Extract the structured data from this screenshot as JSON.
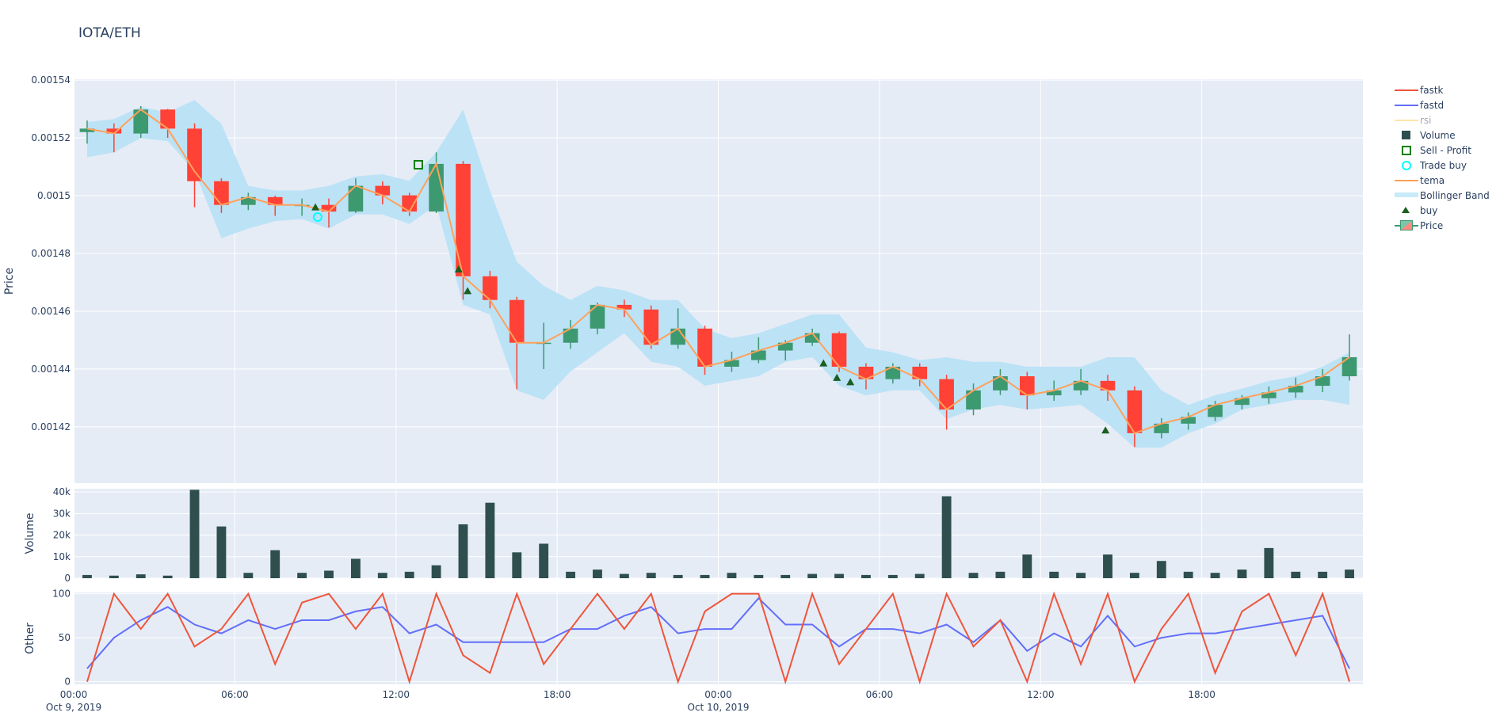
{
  "chart_data": {
    "type": "candlestick",
    "title": "IOTA/ETH",
    "x_range": [
      "2019-10-09 00:00",
      "2019-10-11 00:00"
    ],
    "x_ticks": [
      {
        "t": "2019-10-09 00:00",
        "label": "00:00",
        "sub": "Oct 9, 2019"
      },
      {
        "t": "2019-10-09 06:00",
        "label": "06:00",
        "sub": ""
      },
      {
        "t": "2019-10-09 12:00",
        "label": "12:00",
        "sub": ""
      },
      {
        "t": "2019-10-09 18:00",
        "label": "18:00",
        "sub": ""
      },
      {
        "t": "2019-10-10 00:00",
        "label": "00:00",
        "sub": "Oct 10, 2019"
      },
      {
        "t": "2019-10-10 06:00",
        "label": "06:00",
        "sub": ""
      },
      {
        "t": "2019-10-10 12:00",
        "label": "12:00",
        "sub": ""
      },
      {
        "t": "2019-10-10 18:00",
        "label": "18:00",
        "sub": ""
      }
    ],
    "panels": {
      "price": {
        "ylabel": "Price",
        "ylim": [
          0.0014005,
          0.0015403
        ],
        "ticks": [
          {
            "v": 0.00142,
            "label": "0.00142"
          },
          {
            "v": 0.00144,
            "label": "0.00144"
          },
          {
            "v": 0.00146,
            "label": "0.00146"
          },
          {
            "v": 0.00148,
            "label": "0.00148"
          },
          {
            "v": 0.0015,
            "label": "0.0015"
          },
          {
            "v": 0.00152,
            "label": "0.00152"
          },
          {
            "v": 0.00154,
            "label": "0.00154"
          }
        ]
      },
      "volume": {
        "ylabel": "Volume",
        "ylim": [
          0,
          41500
        ],
        "ticks": [
          {
            "v": 0,
            "label": "0"
          },
          {
            "v": 10000,
            "label": "10k"
          },
          {
            "v": 20000,
            "label": "20k"
          },
          {
            "v": 30000,
            "label": "30k"
          },
          {
            "v": 40000,
            "label": "40k"
          }
        ]
      },
      "other": {
        "ylabel": "Other",
        "ylim": [
          -3,
          101.5
        ],
        "ticks": [
          {
            "v": 0,
            "label": "0"
          },
          {
            "v": 50,
            "label": "50"
          },
          {
            "v": 100,
            "label": "100"
          }
        ]
      }
    },
    "times": [
      "2019-10-09 00:00",
      "2019-10-09 01:00",
      "2019-10-09 02:00",
      "2019-10-09 03:00",
      "2019-10-09 04:00",
      "2019-10-09 05:00",
      "2019-10-09 06:00",
      "2019-10-09 07:00",
      "2019-10-09 08:00",
      "2019-10-09 09:00",
      "2019-10-09 10:00",
      "2019-10-09 11:00",
      "2019-10-09 12:00",
      "2019-10-09 13:00",
      "2019-10-09 14:00",
      "2019-10-09 15:00",
      "2019-10-09 16:00",
      "2019-10-09 17:00",
      "2019-10-09 18:00",
      "2019-10-09 19:00",
      "2019-10-09 20:00",
      "2019-10-09 21:00",
      "2019-10-09 22:00",
      "2019-10-09 23:00",
      "2019-10-10 00:00",
      "2019-10-10 01:00",
      "2019-10-10 02:00",
      "2019-10-10 03:00",
      "2019-10-10 04:00",
      "2019-10-10 05:00",
      "2019-10-10 06:00",
      "2019-10-10 07:00",
      "2019-10-10 08:00",
      "2019-10-10 09:00",
      "2019-10-10 10:00",
      "2019-10-10 11:00",
      "2019-10-10 12:00",
      "2019-10-10 13:00",
      "2019-10-10 14:00",
      "2019-10-10 15:00",
      "2019-10-10 16:00",
      "2019-10-10 17:00",
      "2019-10-10 18:00",
      "2019-10-10 19:00",
      "2019-10-10 20:00",
      "2019-10-10 21:00",
      "2019-10-10 22:00",
      "2019-10-10 23:00"
    ],
    "series": [
      {
        "name": "Price",
        "kind": "candlestick",
        "color_up": "#3D9970",
        "color_down": "#FF4136",
        "ohlc": [
          [
            0.001522,
            0.001526,
            0.001518,
            0.0015232
          ],
          [
            0.0015232,
            0.001525,
            0.001515,
            0.0015215
          ],
          [
            0.0015215,
            0.001531,
            0.00152,
            0.0015298
          ],
          [
            0.0015298,
            0.00153,
            0.00152,
            0.0015232
          ],
          [
            0.0015232,
            0.001525,
            0.001496,
            0.001505
          ],
          [
            0.001505,
            0.001506,
            0.001494,
            0.0014968
          ],
          [
            0.0014968,
            0.001501,
            0.001495,
            0.0014995
          ],
          [
            0.0014995,
            0.0015,
            0.001493,
            0.0014968
          ],
          [
            0.0014968,
            0.001499,
            0.001493,
            0.0014968
          ],
          [
            0.0014968,
            0.001499,
            0.001489,
            0.0014945
          ],
          [
            0.0014945,
            0.001506,
            0.001494,
            0.0015034
          ],
          [
            0.0015034,
            0.001505,
            0.001497,
            0.0015001
          ],
          [
            0.0015001,
            0.001501,
            0.001493,
            0.0014945
          ],
          [
            0.0014945,
            0.001515,
            0.001494,
            0.001511
          ],
          [
            0.001511,
            0.001512,
            0.001464,
            0.0014721
          ],
          [
            0.0014721,
            0.001474,
            0.001461,
            0.0014639
          ],
          [
            0.0014639,
            0.001465,
            0.001433,
            0.0014491
          ],
          [
            0.0014491,
            0.001456,
            0.00144,
            0.0014491
          ],
          [
            0.0014491,
            0.001457,
            0.001447,
            0.001454
          ],
          [
            0.001454,
            0.001463,
            0.001452,
            0.0014622
          ],
          [
            0.0014622,
            0.001464,
            0.001458,
            0.0014606
          ],
          [
            0.0014606,
            0.001462,
            0.001447,
            0.0014484
          ],
          [
            0.0014484,
            0.001461,
            0.001447,
            0.001454
          ],
          [
            0.001454,
            0.001455,
            0.001438,
            0.0014408
          ],
          [
            0.0014408,
            0.001446,
            0.001439,
            0.0014431
          ],
          [
            0.0014431,
            0.001451,
            0.001442,
            0.0014464
          ],
          [
            0.0014464,
            0.00145,
            0.001443,
            0.0014491
          ],
          [
            0.0014491,
            0.001454,
            0.001448,
            0.0014524
          ],
          [
            0.0014524,
            0.001453,
            0.001439,
            0.0014408
          ],
          [
            0.0014408,
            0.001442,
            0.001433,
            0.0014365
          ],
          [
            0.0014365,
            0.001442,
            0.001435,
            0.0014408
          ],
          [
            0.0014408,
            0.001442,
            0.001434,
            0.0014365
          ],
          [
            0.0014365,
            0.001438,
            0.001419,
            0.001426
          ],
          [
            0.001426,
            0.001435,
            0.001424,
            0.0014326
          ],
          [
            0.0014326,
            0.00144,
            0.001431,
            0.0014375
          ],
          [
            0.0014375,
            0.001439,
            0.001426,
            0.0014309
          ],
          [
            0.0014309,
            0.001436,
            0.001429,
            0.0014326
          ],
          [
            0.0014326,
            0.00144,
            0.001431,
            0.0014359
          ],
          [
            0.0014359,
            0.001438,
            0.001429,
            0.0014326
          ],
          [
            0.0014326,
            0.001434,
            0.001413,
            0.0014178
          ],
          [
            0.0014178,
            0.001423,
            0.001416,
            0.0014211
          ],
          [
            0.0014211,
            0.001425,
            0.001419,
            0.0014234
          ],
          [
            0.0014234,
            0.001429,
            0.001422,
            0.0014276
          ],
          [
            0.0014276,
            0.001431,
            0.001426,
            0.0014299
          ],
          [
            0.0014299,
            0.001434,
            0.001428,
            0.0014319
          ],
          [
            0.0014319,
            0.001437,
            0.00143,
            0.0014342
          ],
          [
            0.0014342,
            0.00144,
            0.001432,
            0.0014375
          ],
          [
            0.0014375,
            0.001452,
            0.001436,
            0.0014441
          ]
        ]
      },
      {
        "name": "tema",
        "kind": "line",
        "color": "#FFA15A",
        "values": [
          0.0015232,
          0.0015215,
          0.0015298,
          0.0015232,
          0.0015084,
          0.0014968,
          0.0014995,
          0.0014968,
          0.0014968,
          0.0014945,
          0.0015034,
          0.0015001,
          0.0014945,
          0.001511,
          0.0014721,
          0.0014639,
          0.0014491,
          0.0014491,
          0.001454,
          0.0014622,
          0.0014606,
          0.0014484,
          0.001454,
          0.0014408,
          0.0014431,
          0.0014464,
          0.0014491,
          0.0014524,
          0.0014408,
          0.0014365,
          0.0014408,
          0.0014365,
          0.001426,
          0.0014326,
          0.0014375,
          0.0014309,
          0.0014326,
          0.0014359,
          0.0014326,
          0.0014178,
          0.0014211,
          0.0014234,
          0.0014276,
          0.0014299,
          0.0014319,
          0.0014342,
          0.0014375,
          0.0014441
        ]
      },
      {
        "name": "Bollinger Band",
        "kind": "band",
        "color": "#B9E2F6",
        "upper": [
          0.0015255,
          0.0015265,
          0.0015308,
          0.0015288,
          0.0015331,
          0.0015248,
          0.0015034,
          0.0015018,
          0.0015018,
          0.0015034,
          0.0015067,
          0.0015074,
          0.0015051,
          0.001515,
          0.0015298,
          0.0015018,
          0.0014771,
          0.0014688,
          0.0014639,
          0.0014688,
          0.0014672,
          0.0014639,
          0.0014639,
          0.001454,
          0.0014507,
          0.0014524,
          0.0014556,
          0.0014589,
          0.0014589,
          0.0014474,
          0.0014458,
          0.0014431,
          0.0014441,
          0.0014425,
          0.0014425,
          0.0014408,
          0.0014408,
          0.0014408,
          0.0014441,
          0.0014441,
          0.0014326,
          0.0014276,
          0.0014309,
          0.0014332,
          0.0014359,
          0.0014375,
          0.0014408,
          0.0014458
        ],
        "lower": [
          0.0015133,
          0.001515,
          0.0015199,
          0.0015189,
          0.0015084,
          0.0014853,
          0.0014886,
          0.0014912,
          0.0014919,
          0.0014886,
          0.0014935,
          0.0014935,
          0.0014902,
          0.0014968,
          0.0014622,
          0.0014589,
          0.0014326,
          0.0014293,
          0.0014392,
          0.0014458,
          0.0014524,
          0.0014425,
          0.0014408,
          0.0014342,
          0.0014359,
          0.0014375,
          0.0014425,
          0.0014441,
          0.0014342,
          0.0014309,
          0.0014326,
          0.0014326,
          0.0014227,
          0.001426,
          0.0014276,
          0.001426,
          0.0014267,
          0.0014276,
          0.0014211,
          0.0014128,
          0.0014128,
          0.0014178,
          0.0014211,
          0.001426,
          0.0014276,
          0.0014293,
          0.0014293,
          0.0014276
        ]
      },
      {
        "name": "Volume",
        "kind": "bar",
        "color": "#2F4F4F",
        "values": [
          1500,
          1200,
          1800,
          1200,
          41000,
          24000,
          2500,
          13000,
          2500,
          3500,
          9000,
          2500,
          3000,
          6000,
          25000,
          35000,
          12000,
          16000,
          3000,
          4000,
          2000,
          2500,
          1500,
          1500,
          2500,
          1500,
          1500,
          2000,
          2000,
          1500,
          1500,
          2000,
          38000,
          2500,
          3000,
          11000,
          3000,
          2500,
          11000,
          2500,
          8000,
          3000,
          2500,
          4000,
          14000,
          3000,
          3000,
          4000
        ]
      },
      {
        "name": "fastk",
        "kind": "line",
        "panel": "other",
        "color": "#EF553B",
        "values": [
          0,
          100,
          60,
          100,
          40,
          60,
          100,
          20,
          90,
          100,
          60,
          100,
          0,
          100,
          30,
          10,
          100,
          20,
          60,
          100,
          60,
          100,
          0,
          80,
          100,
          100,
          0,
          100,
          20,
          60,
          100,
          0,
          100,
          40,
          70,
          0,
          100,
          20,
          100,
          0,
          60,
          100,
          10,
          80,
          100,
          30,
          100,
          0
        ]
      },
      {
        "name": "fastd",
        "kind": "line",
        "panel": "other",
        "color": "#636EFA",
        "values": [
          15,
          50,
          70,
          85,
          65,
          55,
          70,
          60,
          70,
          70,
          80,
          85,
          55,
          65,
          45,
          45,
          45,
          45,
          60,
          60,
          75,
          85,
          55,
          60,
          60,
          95,
          65,
          65,
          40,
          60,
          60,
          55,
          65,
          45,
          70,
          35,
          55,
          40,
          75,
          40,
          50,
          55,
          55,
          60,
          65,
          70,
          75,
          15
        ]
      },
      {
        "name": "rsi",
        "kind": "line",
        "panel": "other",
        "color": "#FECB52",
        "visible": "legendonly"
      },
      {
        "name": "buy",
        "kind": "markers",
        "symbol": "triangle-up",
        "color": "#1B5E20",
        "points": [
          {
            "t": "2019-10-09 09:00",
            "v": 0.001496
          },
          {
            "t": "2019-10-09 14:20",
            "v": 0.0014745
          },
          {
            "t": "2019-10-09 14:40",
            "v": 0.001467
          },
          {
            "t": "2019-10-10 03:55",
            "v": 0.001442
          },
          {
            "t": "2019-10-10 04:25",
            "v": 0.001437
          },
          {
            "t": "2019-10-10 04:55",
            "v": 0.0014355
          },
          {
            "t": "2019-10-10 14:25",
            "v": 0.0014188
          }
        ]
      },
      {
        "name": "Trade buy",
        "kind": "markers",
        "symbol": "circle-open",
        "color": "#00FFFF",
        "points": [
          {
            "t": "2019-10-09 09:05",
            "v": 0.0014926
          }
        ]
      },
      {
        "name": "Sell - Profit",
        "kind": "markers",
        "symbol": "square-open",
        "color": "#008000",
        "points": [
          {
            "t": "2019-10-09 12:50",
            "v": 0.0015107
          }
        ]
      }
    ],
    "legend": {
      "placement": "right",
      "items": [
        {
          "label": "fastk",
          "symbol": "line",
          "color": "#EF553B"
        },
        {
          "label": "fastd",
          "symbol": "line",
          "color": "#636EFA"
        },
        {
          "label": "rsi",
          "symbol": "line",
          "color": "#FECB52",
          "muted": true
        },
        {
          "label": "Volume",
          "symbol": "square",
          "color": "#2F4F4F"
        },
        {
          "label": "Sell - Profit",
          "symbol": "square-open",
          "color": "#008000"
        },
        {
          "label": "Trade buy",
          "symbol": "circle-open",
          "color": "#00FFFF"
        },
        {
          "label": "tema",
          "symbol": "line",
          "color": "#FFA15A"
        },
        {
          "label": "Bollinger Band",
          "symbol": "band",
          "color": "#C9EAF8"
        },
        {
          "label": "buy",
          "symbol": "triangle",
          "color": "#1B5E20"
        },
        {
          "label": "Price",
          "symbol": "candle",
          "color": "#3D9970"
        }
      ]
    },
    "plot_bgcolor": "#E5ECF6",
    "grid": true
  }
}
